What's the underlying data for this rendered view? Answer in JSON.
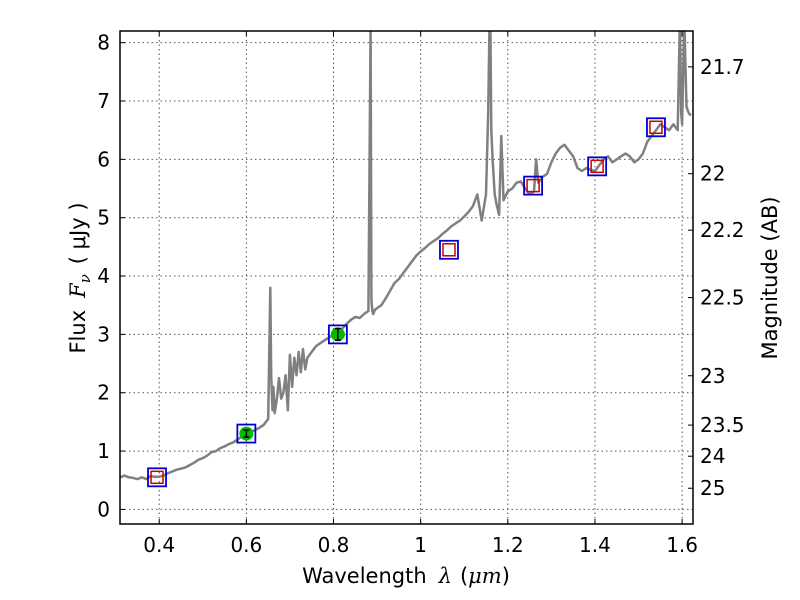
{
  "chart_data": {
    "type": "line",
    "title": "",
    "xlabel": "Wavelength",
    "xlabel_symbol": "λ",
    "xlabel_unit_open": "(",
    "xlabel_unit": "μm",
    "xlabel_unit_close": ")",
    "ylabel": "Flux",
    "ylabel_symbol": "F",
    "ylabel_subscript": "ν",
    "ylabel_unit": "( μJy )",
    "y2label": "Magnitude (AB)",
    "xlim": [
      0.31,
      1.625
    ],
    "ylim": [
      -0.25,
      8.2
    ],
    "grid": true,
    "x_ticks": [
      0.4,
      0.6,
      0.8,
      1.0,
      1.2,
      1.4,
      1.6
    ],
    "x_tick_labels": [
      "0.4",
      "0.6",
      "0.8",
      "1",
      "1.2",
      "1.4",
      "1.6"
    ],
    "y_ticks": [
      0,
      1,
      2,
      3,
      4,
      5,
      6,
      7,
      8
    ],
    "y_tick_labels": [
      "0",
      "1",
      "2",
      "3",
      "4",
      "5",
      "6",
      "7",
      "8"
    ],
    "mag_ticks": [
      21.7,
      22,
      22.2,
      22.5,
      23,
      23.5,
      24,
      25
    ],
    "mag_tick_labels": [
      "21.7",
      "22",
      "22.2",
      "22.5",
      "23",
      "23.5",
      "24",
      "25"
    ],
    "colors": {
      "spectrum": "#808080",
      "model_box": "#0000cc",
      "synthetic": "#cc0000",
      "observed": "#00bb00",
      "grid": "#555555"
    },
    "series": [
      {
        "name": "model spectrum",
        "x": [
          0.31,
          0.32,
          0.33,
          0.34,
          0.35,
          0.36,
          0.37,
          0.38,
          0.39,
          0.4,
          0.41,
          0.42,
          0.43,
          0.44,
          0.45,
          0.46,
          0.47,
          0.48,
          0.49,
          0.5,
          0.51,
          0.52,
          0.53,
          0.54,
          0.55,
          0.56,
          0.57,
          0.58,
          0.59,
          0.6,
          0.61,
          0.62,
          0.63,
          0.64,
          0.65,
          0.655,
          0.657,
          0.66,
          0.662,
          0.665,
          0.67,
          0.675,
          0.68,
          0.685,
          0.69,
          0.695,
          0.7,
          0.705,
          0.71,
          0.715,
          0.72,
          0.725,
          0.73,
          0.735,
          0.74,
          0.75,
          0.76,
          0.77,
          0.78,
          0.79,
          0.8,
          0.81,
          0.82,
          0.83,
          0.84,
          0.85,
          0.86,
          0.87,
          0.88,
          0.885,
          0.887,
          0.889,
          0.891,
          0.895,
          0.9,
          0.91,
          0.92,
          0.93,
          0.94,
          0.95,
          0.96,
          0.97,
          0.98,
          0.99,
          1.0,
          1.01,
          1.02,
          1.03,
          1.04,
          1.05,
          1.06,
          1.07,
          1.08,
          1.09,
          1.1,
          1.11,
          1.12,
          1.13,
          1.14,
          1.15,
          1.155,
          1.158,
          1.16,
          1.162,
          1.165,
          1.17,
          1.175,
          1.18,
          1.185,
          1.19,
          1.2,
          1.21,
          1.22,
          1.23,
          1.24,
          1.25,
          1.26,
          1.265,
          1.27,
          1.28,
          1.29,
          1.3,
          1.31,
          1.32,
          1.33,
          1.34,
          1.35,
          1.36,
          1.37,
          1.38,
          1.39,
          1.4,
          1.41,
          1.42,
          1.43,
          1.44,
          1.45,
          1.46,
          1.47,
          1.48,
          1.49,
          1.5,
          1.51,
          1.52,
          1.53,
          1.54,
          1.55,
          1.56,
          1.57,
          1.58,
          1.59,
          1.595,
          1.598,
          1.6,
          1.605,
          1.61,
          1.615,
          1.62
        ],
        "y": [
          0.55,
          0.58,
          0.55,
          0.54,
          0.52,
          0.55,
          0.52,
          0.57,
          0.56,
          0.56,
          0.58,
          0.62,
          0.65,
          0.68,
          0.7,
          0.72,
          0.76,
          0.8,
          0.85,
          0.88,
          0.92,
          0.98,
          1.0,
          1.05,
          1.08,
          1.12,
          1.15,
          1.2,
          1.25,
          1.28,
          1.33,
          1.36,
          1.4,
          1.45,
          1.55,
          3.8,
          2.3,
          1.7,
          2.1,
          1.65,
          1.9,
          2.25,
          1.9,
          2.0,
          2.3,
          1.7,
          2.65,
          2.1,
          2.6,
          2.3,
          2.7,
          2.35,
          2.75,
          2.4,
          2.6,
          2.7,
          2.8,
          2.85,
          2.9,
          2.95,
          3.0,
          3.05,
          3.1,
          3.18,
          3.25,
          3.3,
          3.28,
          3.35,
          3.4,
          8.3,
          3.6,
          3.4,
          3.35,
          3.42,
          3.45,
          3.5,
          3.62,
          3.75,
          3.88,
          3.95,
          4.05,
          4.15,
          4.25,
          4.35,
          4.42,
          4.48,
          4.55,
          4.6,
          4.65,
          4.72,
          4.78,
          4.85,
          4.9,
          4.95,
          5.02,
          5.1,
          5.2,
          5.4,
          4.95,
          5.4,
          6.8,
          8.3,
          8.3,
          6.5,
          6.0,
          5.4,
          5.2,
          5.05,
          6.4,
          5.3,
          5.45,
          5.5,
          5.6,
          5.62,
          5.5,
          5.4,
          5.45,
          6.0,
          5.6,
          5.7,
          5.75,
          5.95,
          6.1,
          6.2,
          6.25,
          6.15,
          6.05,
          5.85,
          5.8,
          5.85,
          5.82,
          5.8,
          5.9,
          6.0,
          6.05,
          5.95,
          6.0,
          6.05,
          6.1,
          6.05,
          5.95,
          6.0,
          6.1,
          6.3,
          6.4,
          6.5,
          6.6,
          6.55,
          6.5,
          6.6,
          6.5,
          8.4,
          6.8,
          6.6,
          8.4,
          6.9,
          6.8,
          6.75
        ]
      }
    ],
    "model_points": [
      {
        "x": 0.395,
        "y": 0.55
      },
      {
        "x": 0.6,
        "y": 1.3
      },
      {
        "x": 0.81,
        "y": 3.0
      },
      {
        "x": 1.065,
        "y": 4.45
      },
      {
        "x": 1.258,
        "y": 5.55
      },
      {
        "x": 1.405,
        "y": 5.88
      },
      {
        "x": 1.54,
        "y": 6.55
      }
    ],
    "synthetic_points": [
      {
        "x": 0.395,
        "y": 0.55
      },
      {
        "x": 1.065,
        "y": 4.45
      },
      {
        "x": 1.258,
        "y": 5.55
      },
      {
        "x": 1.405,
        "y": 5.88
      },
      {
        "x": 1.54,
        "y": 6.55
      }
    ],
    "observed_points": [
      {
        "x": 0.6,
        "y": 1.3,
        "err": 0.06
      },
      {
        "x": 0.81,
        "y": 3.0,
        "err": 0.1
      }
    ]
  }
}
